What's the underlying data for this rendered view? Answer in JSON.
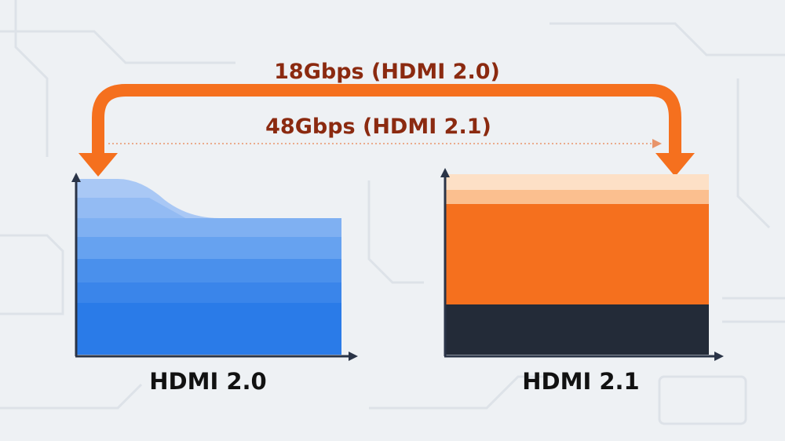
{
  "top_label": "18Gbps (HDMI 2.0)",
  "middle_label": "48Gbps (HDMI 2.1)",
  "left_caption": "HDMI 2.0",
  "right_caption": "HDMI 2.1"
}
